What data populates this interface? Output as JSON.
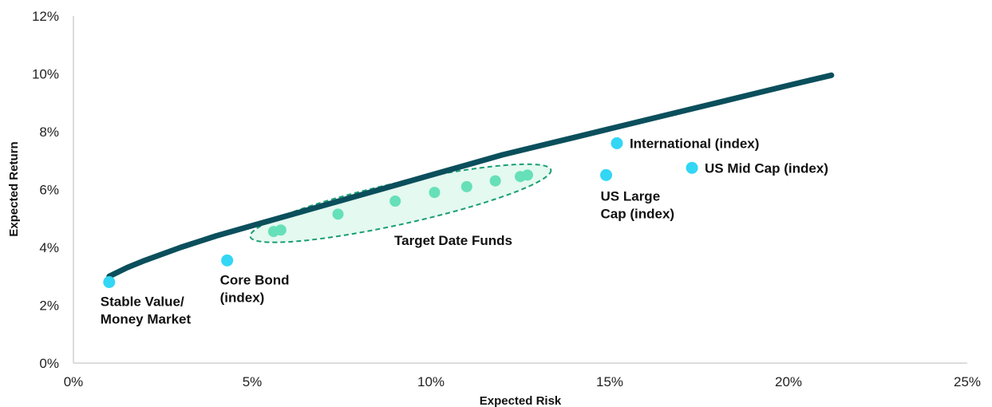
{
  "chart_data": {
    "type": "scatter",
    "xlabel": "Expected Risk",
    "ylabel": "Expected Return",
    "xlim": [
      0,
      25
    ],
    "ylim": [
      0,
      12
    ],
    "x_ticks": [
      "0%",
      "5%",
      "10%",
      "15%",
      "20%",
      "25%"
    ],
    "y_ticks": [
      "0%",
      "2%",
      "4%",
      "6%",
      "8%",
      "10%",
      "12%"
    ],
    "grid": false,
    "frontier": {
      "color": "#0b4f5c",
      "x": [
        1.0,
        1.5,
        2.0,
        3.0,
        4.0,
        5.0,
        6.0,
        7.0,
        8.0,
        9.0,
        10.0,
        11.0,
        12.0,
        13.0,
        14.0,
        15.0,
        16.0,
        17.0,
        18.0,
        19.0,
        20.0,
        21.2
      ],
      "y": [
        3.0,
        3.3,
        3.55,
        4.0,
        4.4,
        4.75,
        5.1,
        5.45,
        5.8,
        6.15,
        6.5,
        6.85,
        7.2,
        7.5,
        7.8,
        8.1,
        8.4,
        8.7,
        9.0,
        9.3,
        9.6,
        9.95
      ]
    },
    "asset_points": {
      "color": "#33d6f5",
      "points": [
        {
          "label_lines": [
            "Stable Value/",
            "Money Market"
          ],
          "x": 1.0,
          "y": 2.8
        },
        {
          "label_lines": [
            "Core Bond",
            "(index)"
          ],
          "x": 4.3,
          "y": 3.55
        },
        {
          "label_lines": [
            "US Large",
            "Cap (index)"
          ],
          "x": 14.9,
          "y": 6.5
        },
        {
          "label_lines": [
            "International (index)"
          ],
          "x": 15.2,
          "y": 7.6
        },
        {
          "label_lines": [
            "US Mid Cap (index)"
          ],
          "x": 17.3,
          "y": 6.75
        }
      ]
    },
    "target_date_funds": {
      "label": "Target Date Funds",
      "color": "#66e0b8",
      "points": [
        {
          "x": 5.6,
          "y": 4.55
        },
        {
          "x": 5.8,
          "y": 4.6
        },
        {
          "x": 7.4,
          "y": 5.15
        },
        {
          "x": 9.0,
          "y": 5.6
        },
        {
          "x": 10.1,
          "y": 5.9
        },
        {
          "x": 11.0,
          "y": 6.1
        },
        {
          "x": 11.8,
          "y": 6.3
        },
        {
          "x": 12.5,
          "y": 6.45
        },
        {
          "x": 12.7,
          "y": 6.5
        }
      ]
    }
  }
}
